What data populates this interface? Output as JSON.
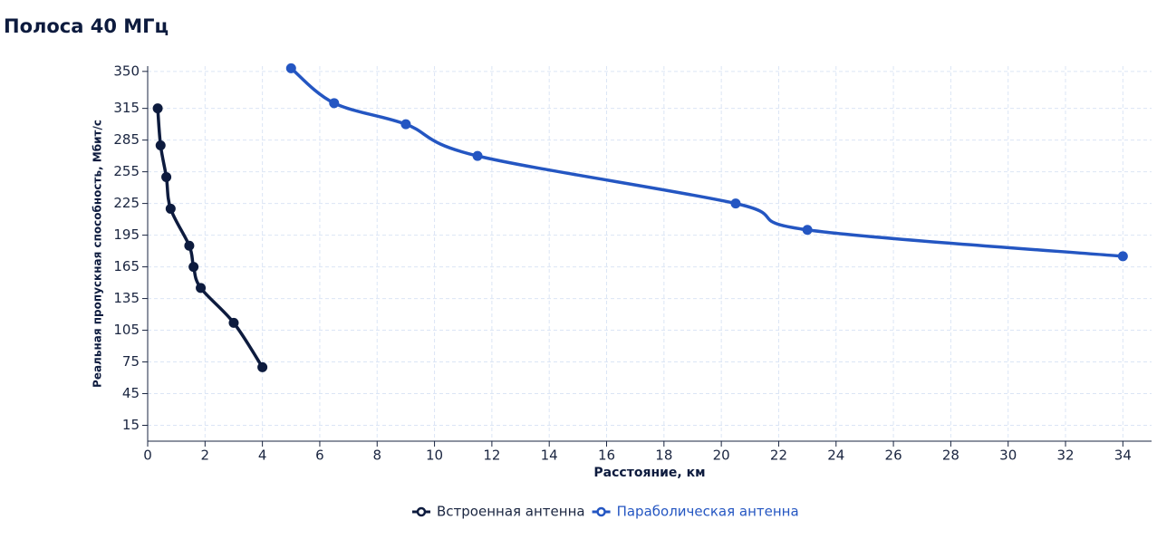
{
  "chart_data": {
    "type": "line",
    "title": "Полоса 40 МГц",
    "x_label": "Расстояние, км",
    "y_label": "Реальная пропускная способность, Мбит/с",
    "xlim": [
      0,
      35
    ],
    "xticks": [
      0,
      2,
      4,
      6,
      8,
      10,
      12,
      14,
      16,
      18,
      20,
      22,
      24,
      26,
      28,
      30,
      32,
      34
    ],
    "ylim": [
      0,
      355
    ],
    "yticks": [
      15,
      45,
      75,
      105,
      135,
      165,
      195,
      225,
      255,
      285,
      315,
      350
    ],
    "grid": true,
    "legend": "bottom",
    "series": [
      {
        "name": "Встроенная антенна",
        "color": "#0d1b3e",
        "x": [
          0.35,
          0.45,
          0.65,
          0.8,
          1.45,
          1.6,
          1.85,
          3,
          4
        ],
        "values": [
          315,
          280,
          250,
          220,
          185,
          165,
          145,
          112,
          70
        ]
      },
      {
        "name": "Параболическая антенна",
        "color": "#2456c2",
        "x": [
          5,
          6.5,
          9,
          11.5,
          20.5,
          23,
          34
        ],
        "values": [
          353,
          320,
          300,
          270,
          225,
          200,
          175
        ]
      }
    ]
  }
}
